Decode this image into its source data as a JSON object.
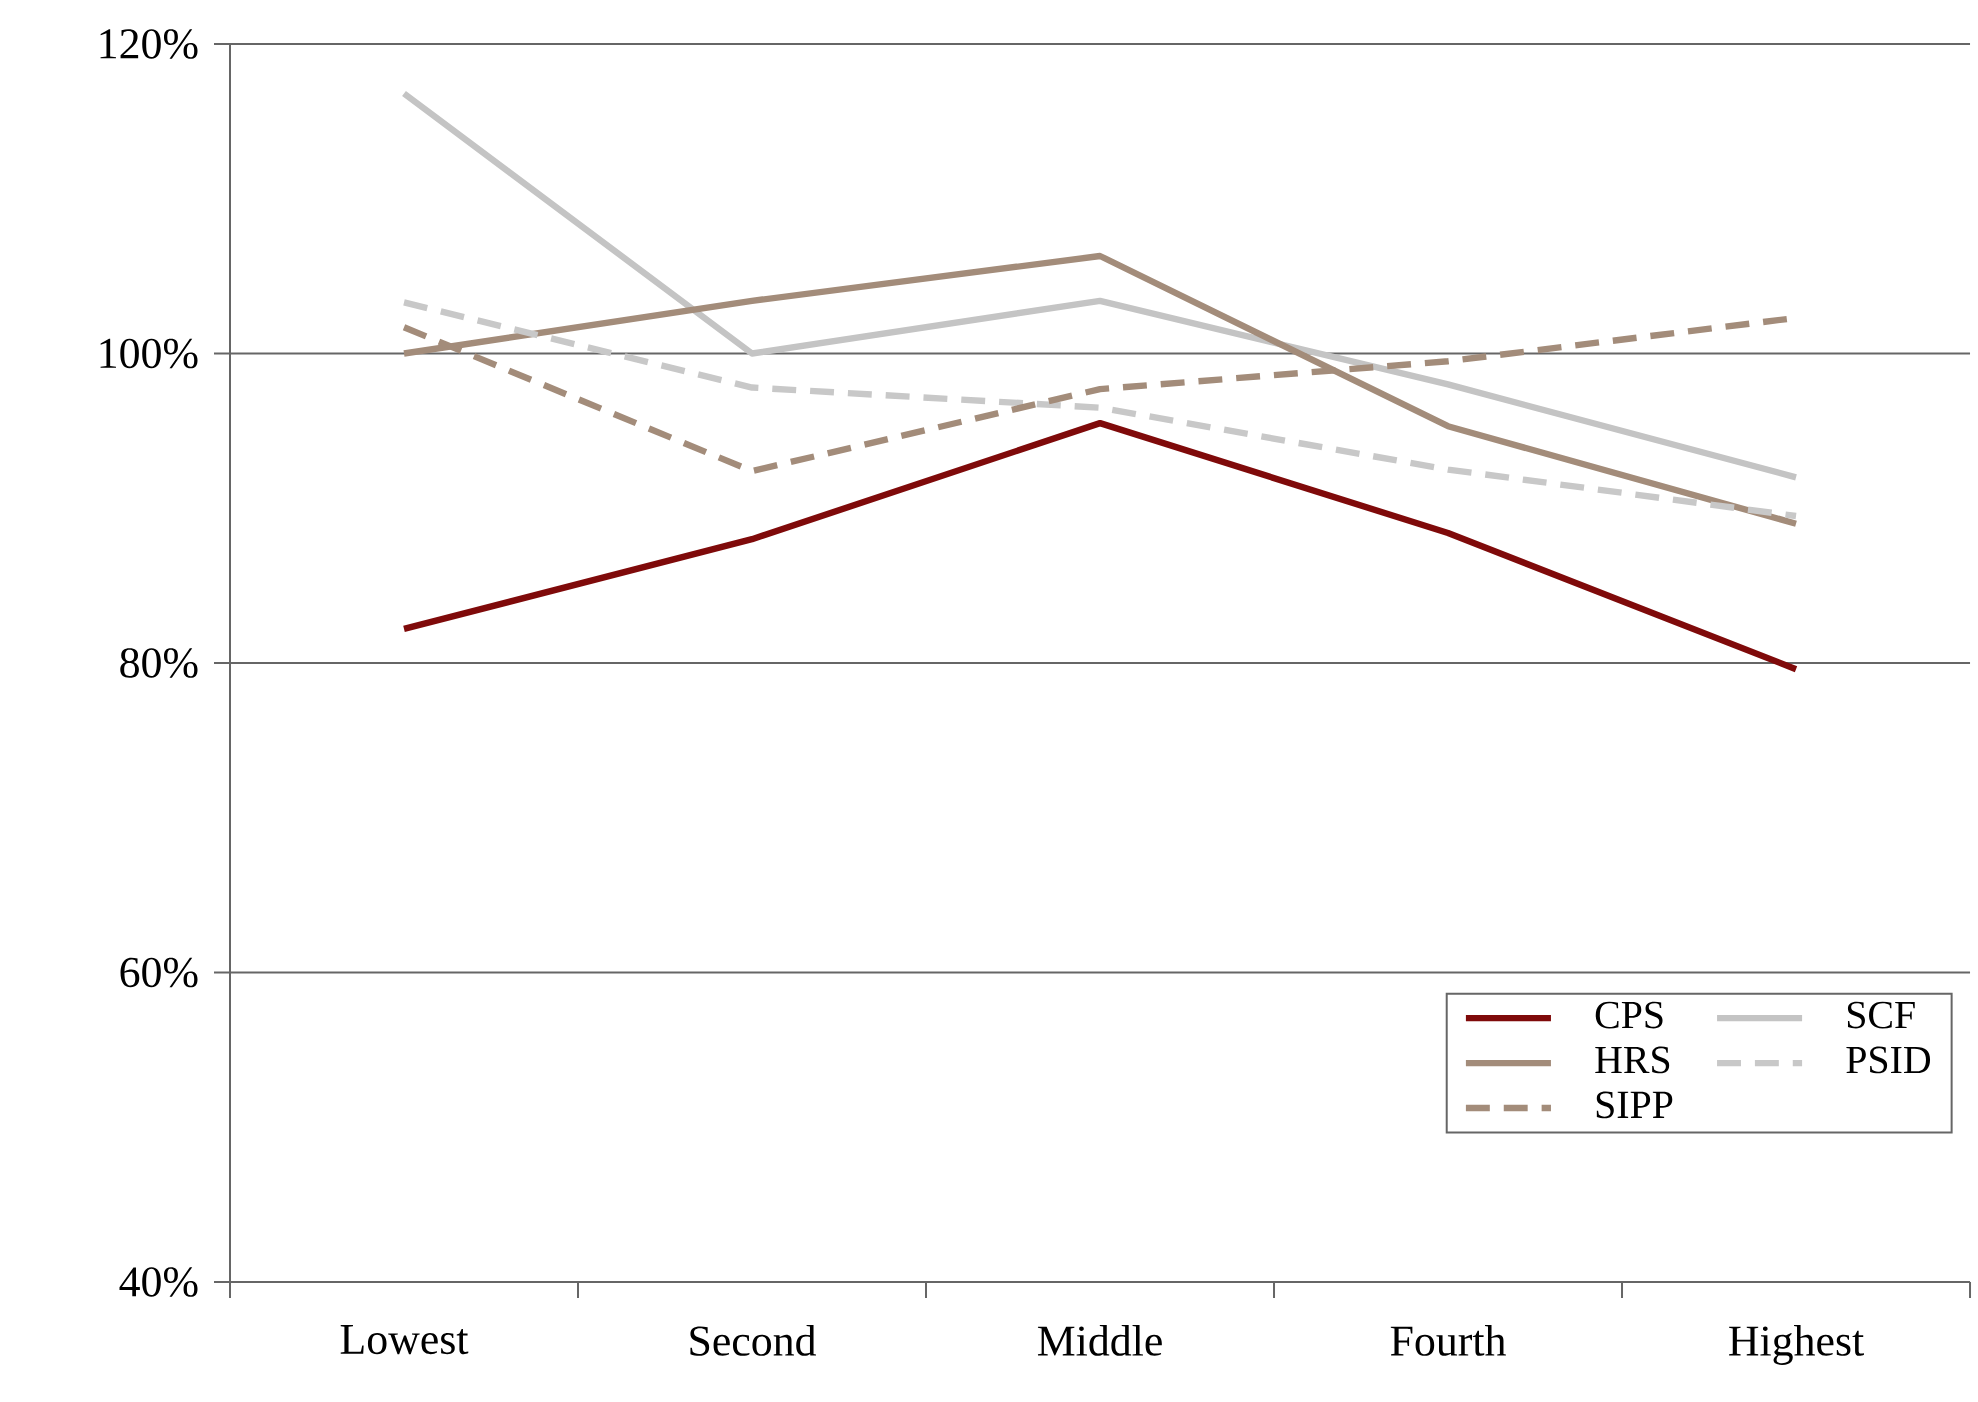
{
  "chart_data": {
    "type": "line",
    "categories": [
      "Lowest",
      "Second",
      "Middle",
      "Fourth",
      "Highest"
    ],
    "series": [
      {
        "name": "CPS",
        "color": "#7f0a0a",
        "line_style": "solid",
        "values": [
          82.2,
          88,
          95.5,
          88.4,
          79.6
        ]
      },
      {
        "name": "SCF",
        "color": "#c4c4c4",
        "line_style": "solid",
        "values": [
          116.8,
          100,
          103.4,
          98,
          92
        ]
      },
      {
        "name": "HRS",
        "color": "#a38c7a",
        "line_style": "solid",
        "values": [
          100,
          103.4,
          106.3,
          95.3,
          89
        ]
      },
      {
        "name": "PSID",
        "color": "#c8c8c8",
        "line_style": "dashed",
        "values": [
          103.3,
          97.8,
          96.5,
          92.5,
          89.5
        ]
      },
      {
        "name": "SIPP",
        "color": "#a38c7a",
        "line_style": "dashed",
        "values": [
          101.7,
          92.4,
          97.7,
          99.5,
          102.3
        ]
      }
    ],
    "ylim": [
      40,
      120
    ],
    "yticks": [
      {
        "value": 40,
        "label": "40%"
      },
      {
        "value": 60,
        "label": "60%"
      },
      {
        "value": 80,
        "label": "80%"
      },
      {
        "value": 100,
        "label": "100%"
      },
      {
        "value": 120,
        "label": "120%"
      }
    ],
    "grid": "y",
    "legend": "bottom right"
  }
}
